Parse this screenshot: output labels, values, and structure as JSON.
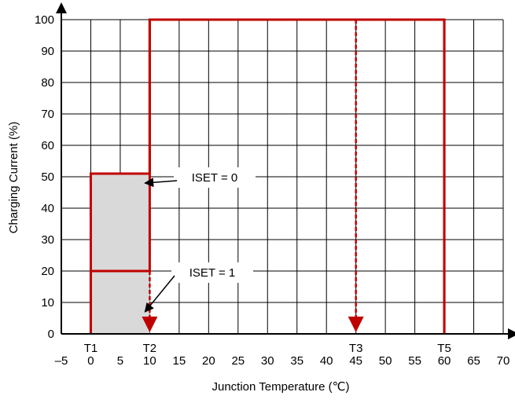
{
  "chart_data": {
    "type": "line",
    "title": "",
    "xlabel": "Junction Temperature (℃)",
    "ylabel": "Charging Current (%)",
    "xlim": [
      -5,
      70
    ],
    "ylim": [
      0,
      100
    ],
    "x_ticks": [
      "–5",
      "0",
      "5",
      "10",
      "15",
      "20",
      "25",
      "30",
      "35",
      "40",
      "45",
      "50",
      "55",
      "60",
      "65",
      "70"
    ],
    "x_tick_values": [
      -5,
      0,
      5,
      10,
      15,
      20,
      25,
      30,
      35,
      40,
      45,
      50,
      55,
      60,
      65,
      70
    ],
    "y_ticks": [
      "0",
      "10",
      "20",
      "30",
      "40",
      "50",
      "60",
      "70",
      "80",
      "90",
      "100"
    ],
    "y_tick_values": [
      0,
      10,
      20,
      30,
      40,
      50,
      60,
      70,
      80,
      90,
      100
    ],
    "threshold_markers": [
      {
        "label": "T1",
        "x": 0
      },
      {
        "label": "T2",
        "x": 10
      },
      {
        "label": "T3",
        "x": 45
      },
      {
        "label": "T5",
        "x": 60
      }
    ],
    "series": [
      {
        "name": "ISET = 0",
        "x": [
          0,
          0,
          10,
          10,
          60,
          60
        ],
        "y": [
          0,
          51,
          51,
          100,
          100,
          0
        ]
      },
      {
        "name": "ISET = 1",
        "x": [
          0,
          0,
          10,
          10,
          60,
          60
        ],
        "y": [
          0,
          20,
          20,
          100,
          100,
          0
        ]
      }
    ],
    "shaded_region": {
      "x": [
        0,
        10
      ],
      "y": [
        0,
        51
      ]
    },
    "dashed_arrows": [
      {
        "x": 10,
        "from_y": 100,
        "to_y": 0
      },
      {
        "x": 45,
        "from_y": 100,
        "to_y": 0
      }
    ],
    "annotations": [
      {
        "text": "ISET = 0",
        "points_to": {
          "x": 10,
          "y": 48
        }
      },
      {
        "text": "ISET = 1",
        "points_to": {
          "x": 10,
          "y": 7
        }
      }
    ],
    "colors": {
      "line": "#c00000",
      "shade": "#d9d9d9",
      "grid": "#000000"
    },
    "grid": true
  }
}
